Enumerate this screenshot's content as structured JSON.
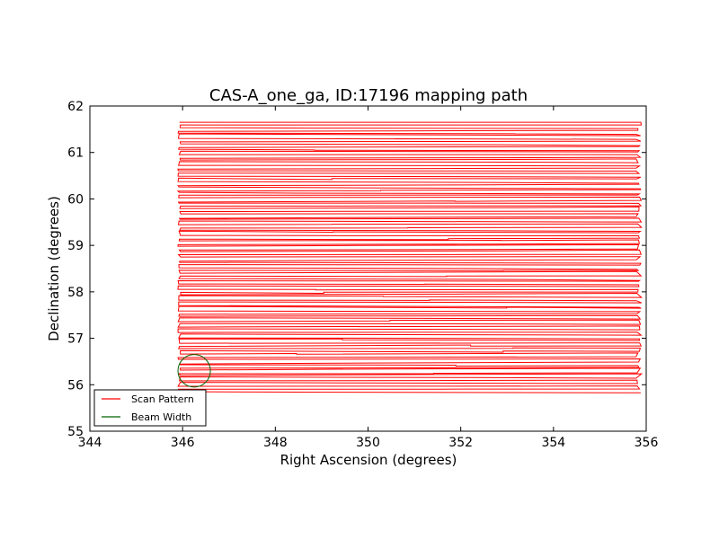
{
  "chart_data": {
    "type": "line",
    "title": "CAS-A_one_ga, ID:17196 mapping path",
    "xlabel": "Right Ascension (degrees)",
    "ylabel": "Declination (degrees)",
    "xlim": [
      344,
      356
    ],
    "ylim": [
      55,
      62
    ],
    "xticks": [
      344,
      346,
      348,
      350,
      352,
      354,
      356
    ],
    "xtick_labels": [
      "344",
      "346",
      "348",
      "350",
      "352",
      "354",
      "356"
    ],
    "yticks": [
      55,
      56,
      57,
      58,
      59,
      60,
      61,
      62
    ],
    "ytick_labels": [
      "55",
      "56",
      "57",
      "58",
      "59",
      "60",
      "61",
      "62"
    ],
    "grid": false,
    "legend_placement": "lower-left",
    "series": [
      {
        "name": "Scan Pattern",
        "color": "#ff0000",
        "pattern": "boustrophedon",
        "ra_range": [
          345.9,
          355.9
        ],
        "dec_range": [
          55.85,
          61.65
        ],
        "approx_leg_count": 100
      },
      {
        "name": "Beam Width",
        "color": "#006400",
        "shape": "circle",
        "center": [
          346.25,
          56.3
        ],
        "radius_deg": 0.35
      }
    ]
  }
}
